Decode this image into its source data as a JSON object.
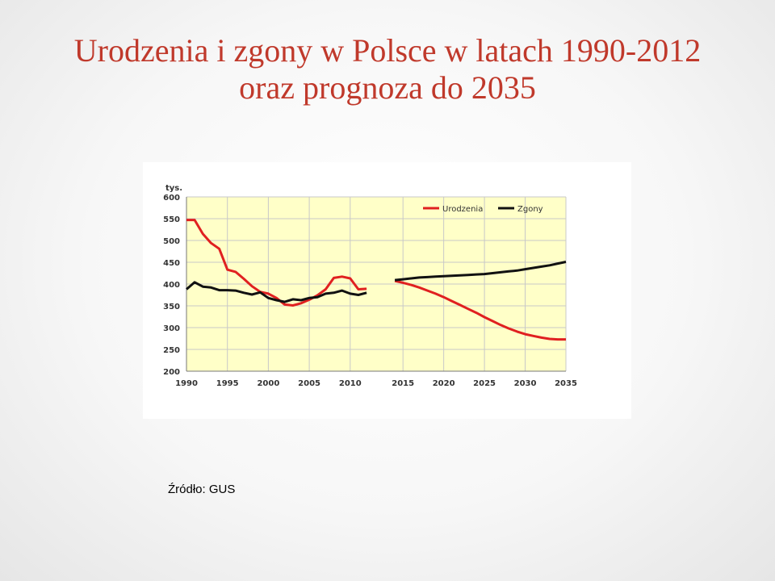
{
  "slide": {
    "title_line1": "Urodzenia i zgony w Polsce w latach 1990-2012",
    "title_line2": "oraz prognoza do 2035",
    "source": "Źródło: GUS"
  },
  "colors": {
    "births": "#e02020",
    "deaths": "#111111",
    "plot_bg": "#ffffc8",
    "grid": "#c8c8c8"
  },
  "chart_data": {
    "type": "line",
    "title": "",
    "xlabel": "",
    "ylabel": "tys.",
    "xlim": [
      1990,
      2035
    ],
    "ylim": [
      200,
      600
    ],
    "y_ticks": [
      200,
      250,
      300,
      350,
      400,
      450,
      500,
      550,
      600
    ],
    "x_ticks_left": [
      1990,
      1995,
      2000,
      2005,
      2010
    ],
    "x_ticks_right": [
      2015,
      2020,
      2025,
      2030,
      2035
    ],
    "legend_position": "top-right",
    "grid": true,
    "series": [
      {
        "name": "Urodzenia",
        "historical": {
          "x": [
            1990,
            1991,
            1992,
            1993,
            1994,
            1995,
            1996,
            1997,
            1998,
            1999,
            2000,
            2001,
            2002,
            2003,
            2004,
            2005,
            2006,
            2007,
            2008,
            2009,
            2010,
            2011,
            2012
          ],
          "y": [
            547,
            547,
            515,
            494,
            481,
            433,
            428,
            412,
            395,
            382,
            378,
            368,
            353,
            351,
            356,
            364,
            374,
            388,
            414,
            417,
            413,
            388,
            389
          ]
        },
        "forecast": {
          "x": [
            2014,
            2015,
            2016,
            2017,
            2018,
            2019,
            2020,
            2021,
            2022,
            2023,
            2024,
            2025,
            2026,
            2027,
            2028,
            2029,
            2030,
            2031,
            2032,
            2033,
            2034,
            2035
          ],
          "y": [
            407,
            403,
            398,
            392,
            385,
            378,
            370,
            361,
            352,
            343,
            334,
            324,
            315,
            306,
            298,
            291,
            285,
            281,
            277,
            274,
            273,
            273
          ]
        }
      },
      {
        "name": "Zgony",
        "historical": {
          "x": [
            1990,
            1991,
            1992,
            1993,
            1994,
            1995,
            1996,
            1997,
            1998,
            1999,
            2000,
            2001,
            2002,
            2003,
            2004,
            2005,
            2006,
            2007,
            2008,
            2009,
            2010,
            2011,
            2012
          ],
          "y": [
            388,
            404,
            394,
            392,
            386,
            386,
            385,
            380,
            376,
            381,
            368,
            363,
            359,
            365,
            363,
            368,
            370,
            378,
            380,
            385,
            378,
            375,
            380
          ]
        },
        "forecast": {
          "x": [
            2014,
            2015,
            2016,
            2017,
            2018,
            2019,
            2020,
            2021,
            2022,
            2023,
            2024,
            2025,
            2026,
            2027,
            2028,
            2029,
            2030,
            2031,
            2032,
            2033,
            2034,
            2035
          ],
          "y": [
            409,
            411,
            413,
            415,
            416,
            417,
            418,
            419,
            420,
            421,
            422,
            423,
            425,
            427,
            429,
            431,
            434,
            437,
            440,
            443,
            447,
            451
          ]
        }
      }
    ]
  }
}
